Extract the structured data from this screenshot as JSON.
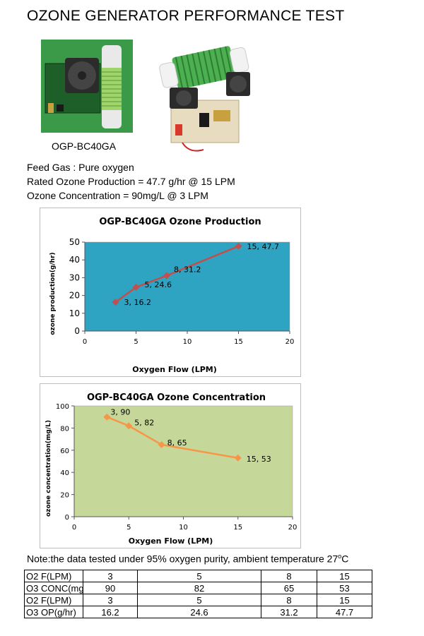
{
  "page_title": "OZONE GENERATOR PERFORMANCE TEST",
  "product_caption": "OGP-BC40GA",
  "specs": {
    "feed_gas": "Feed Gas : Pure oxygen",
    "rated_production": "Rated Ozone Production = 47.7 g/hr @ 15 LPM",
    "concentration": "Ozone Concentration = 90mg/L @ 3 LPM"
  },
  "colors": {
    "production_plot_bg": "#2fa3c2",
    "production_line": "#c0504d",
    "concentration_plot_bg": "#c5d89a",
    "concentration_line": "#f79646"
  },
  "chart_data": [
    {
      "type": "line",
      "title": "OGP-BC40GA Ozone Production",
      "xlabel": "Oxygen Flow (LPM)",
      "ylabel": "ozone production(g/hr)",
      "xlim": [
        0,
        20
      ],
      "ylim": [
        0,
        50
      ],
      "x_ticks": [
        0,
        5,
        10,
        15,
        20
      ],
      "y_ticks": [
        0,
        10,
        20,
        30,
        40,
        50
      ],
      "grid": false,
      "series": [
        {
          "x": [
            3,
            5,
            8,
            15
          ],
          "y": [
            16.2,
            24.6,
            31.2,
            47.7
          ]
        }
      ],
      "data_labels": [
        "3, 16.2",
        "5, 24.6",
        "8, 31.2",
        "15, 47.7"
      ]
    },
    {
      "type": "line",
      "title": "OGP-BC40GA Ozone Concentration",
      "xlabel": "Oxygen Flow (LPM)",
      "ylabel": "ozone concentration(mg/L)",
      "xlim": [
        0,
        20
      ],
      "ylim": [
        0,
        100
      ],
      "x_ticks": [
        0,
        5,
        10,
        15,
        20
      ],
      "y_ticks": [
        0,
        20,
        40,
        60,
        80,
        100
      ],
      "grid": false,
      "series": [
        {
          "x": [
            3,
            5,
            8,
            15
          ],
          "y": [
            90,
            82,
            65,
            53
          ]
        }
      ],
      "data_labels": [
        "3, 90",
        "5, 82",
        "8, 65",
        "15, 53"
      ]
    }
  ],
  "note": {
    "text": "Note:the data tested under 95% oxygen purity, ambient temperature 27",
    "degree_superscript": "o",
    "unit": "C"
  },
  "table": {
    "rows": [
      {
        "label": "O2 F(LPM)",
        "values": [
          "3",
          "5",
          "8",
          "15"
        ]
      },
      {
        "label": "O3 CONC(mg",
        "values": [
          "90",
          "82",
          "65",
          "53"
        ]
      },
      {
        "label": "O2 F(LPM)",
        "values": [
          "3",
          "5",
          "8",
          "15"
        ]
      },
      {
        "label": "O3 OP(g/hr)",
        "values": [
          "16.2",
          "24.6",
          "31.2",
          "47.7"
        ]
      }
    ]
  }
}
